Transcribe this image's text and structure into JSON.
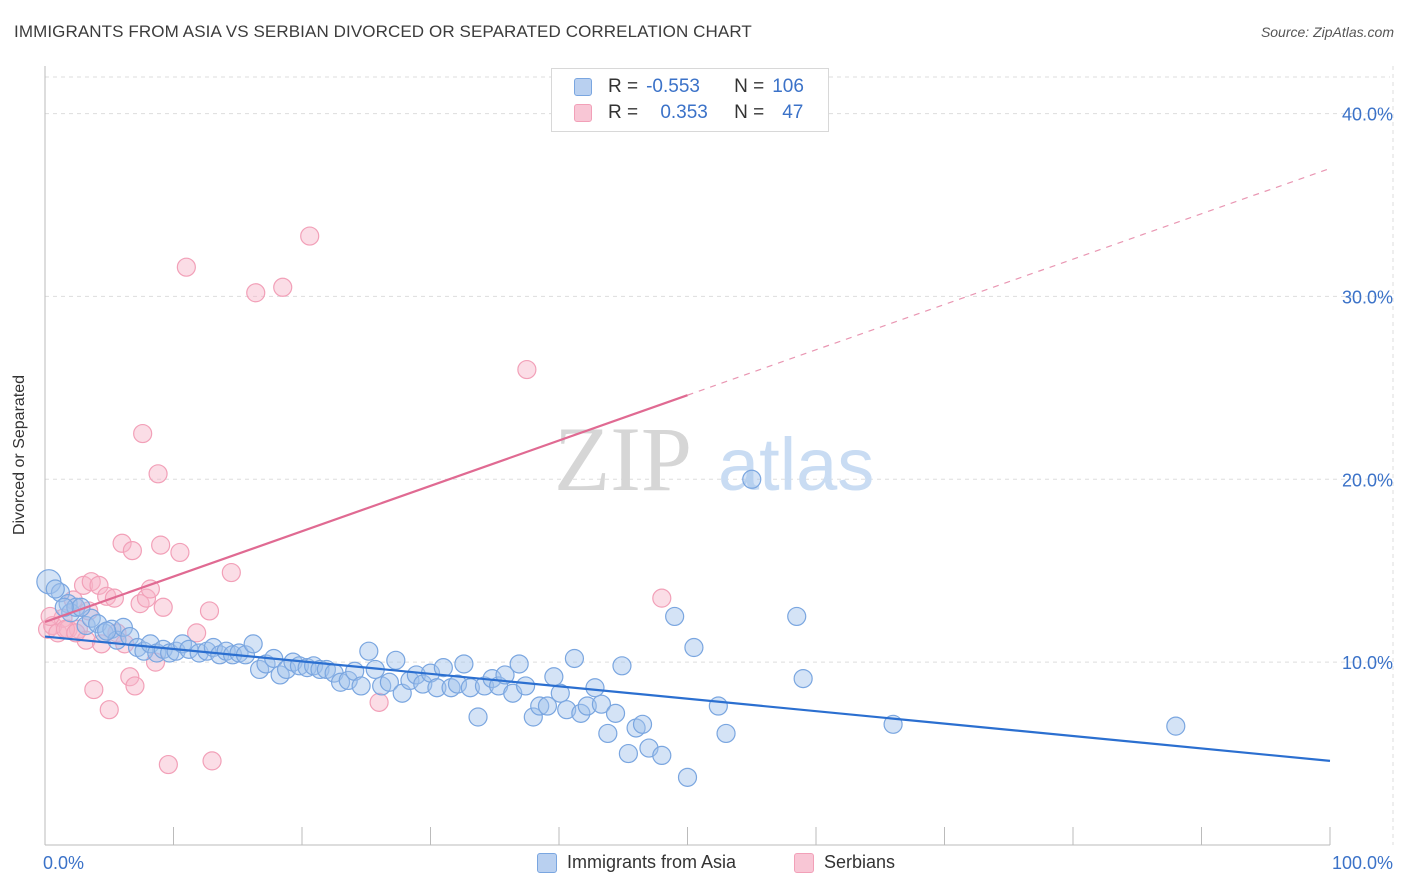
{
  "header": {
    "title": "IMMIGRANTS FROM ASIA VS SERBIAN DIVORCED OR SEPARATED CORRELATION CHART",
    "source": "Source: ZipAtlas.com"
  },
  "legend": {
    "rows": [
      {
        "r_label": "R =",
        "r_value": "-0.553",
        "n_label": "N =",
        "n_value": "106"
      },
      {
        "r_label": "R =",
        "r_value": "0.353",
        "n_label": "N =",
        "n_value": "47"
      }
    ]
  },
  "watermark": {
    "zip": "ZIP",
    "atlas": "atlas"
  },
  "colors": {
    "blue": "#7aa6e0",
    "blue_line": "#2b6fd0",
    "pink": "#f2a0b8",
    "pink_line": "#e06a92",
    "axis_label": "#3b72c8",
    "grid": "#dddddd"
  },
  "chart_data": {
    "type": "scatter",
    "title": "IMMIGRANTS FROM ASIA VS SERBIAN DIVORCED OR SEPARATED CORRELATION CHART",
    "xlabel": "",
    "ylabel": "Divorced or Separated",
    "xlim": [
      0,
      100
    ],
    "ylim": [
      0,
      42
    ],
    "x_tick_labels": [
      "0.0%",
      "100.0%"
    ],
    "y_ticks": [
      10,
      20,
      30,
      40
    ],
    "y_tick_labels": [
      "10.0%",
      "20.0%",
      "30.0%",
      "40.0%"
    ],
    "grid": true,
    "legend_position": "top-center",
    "series": [
      {
        "name": "Immigrants from Asia",
        "color": "#7aa6e0",
        "trend": {
          "x0": 0,
          "y0": 11.4,
          "x1": 100,
          "y1": 4.6,
          "dashed_from": null
        },
        "points": [
          [
            0.3,
            14.4
          ],
          [
            1.2,
            13.8
          ],
          [
            1.8,
            13.2
          ],
          [
            2.0,
            12.7
          ],
          [
            2.4,
            13.0
          ],
          [
            3.2,
            12.0
          ],
          [
            3.6,
            12.4
          ],
          [
            4.1,
            12.1
          ],
          [
            4.6,
            11.6
          ],
          [
            5.2,
            11.8
          ],
          [
            5.6,
            11.2
          ],
          [
            6.1,
            11.9
          ],
          [
            6.6,
            11.4
          ],
          [
            7.2,
            10.8
          ],
          [
            7.7,
            10.6
          ],
          [
            8.2,
            11.0
          ],
          [
            8.7,
            10.5
          ],
          [
            9.2,
            10.7
          ],
          [
            9.7,
            10.5
          ],
          [
            10.2,
            10.6
          ],
          [
            10.7,
            11.0
          ],
          [
            11.2,
            10.7
          ],
          [
            12.0,
            10.5
          ],
          [
            12.6,
            10.6
          ],
          [
            13.1,
            10.8
          ],
          [
            13.6,
            10.4
          ],
          [
            14.1,
            10.6
          ],
          [
            14.6,
            10.4
          ],
          [
            15.1,
            10.5
          ],
          [
            15.6,
            10.4
          ],
          [
            16.2,
            11.0
          ],
          [
            16.7,
            9.6
          ],
          [
            17.2,
            9.9
          ],
          [
            17.8,
            10.2
          ],
          [
            18.3,
            9.3
          ],
          [
            18.8,
            9.6
          ],
          [
            19.3,
            10.0
          ],
          [
            19.8,
            9.8
          ],
          [
            20.4,
            9.7
          ],
          [
            20.9,
            9.8
          ],
          [
            21.4,
            9.6
          ],
          [
            21.9,
            9.6
          ],
          [
            22.5,
            9.4
          ],
          [
            23.0,
            8.9
          ],
          [
            23.6,
            9.0
          ],
          [
            24.1,
            9.5
          ],
          [
            24.6,
            8.7
          ],
          [
            25.2,
            10.6
          ],
          [
            25.7,
            9.6
          ],
          [
            26.2,
            8.7
          ],
          [
            26.8,
            8.9
          ],
          [
            27.3,
            10.1
          ],
          [
            27.8,
            8.3
          ],
          [
            28.4,
            9.0
          ],
          [
            28.9,
            9.3
          ],
          [
            29.4,
            8.8
          ],
          [
            30.0,
            9.4
          ],
          [
            30.5,
            8.6
          ],
          [
            31.0,
            9.7
          ],
          [
            31.6,
            8.6
          ],
          [
            32.1,
            8.8
          ],
          [
            32.6,
            9.9
          ],
          [
            33.1,
            8.6
          ],
          [
            33.7,
            7.0
          ],
          [
            34.2,
            8.7
          ],
          [
            34.8,
            9.1
          ],
          [
            35.3,
            8.7
          ],
          [
            35.8,
            9.3
          ],
          [
            36.4,
            8.3
          ],
          [
            36.9,
            9.9
          ],
          [
            37.4,
            8.7
          ],
          [
            38.0,
            7.0
          ],
          [
            38.5,
            7.6
          ],
          [
            39.1,
            7.6
          ],
          [
            39.6,
            9.2
          ],
          [
            40.1,
            8.3
          ],
          [
            40.6,
            7.4
          ],
          [
            41.2,
            10.2
          ],
          [
            41.7,
            7.2
          ],
          [
            42.2,
            7.6
          ],
          [
            42.8,
            8.6
          ],
          [
            43.3,
            7.7
          ],
          [
            43.8,
            6.1
          ],
          [
            44.4,
            7.2
          ],
          [
            44.9,
            9.8
          ],
          [
            45.4,
            5.0
          ],
          [
            46.0,
            6.4
          ],
          [
            46.5,
            6.6
          ],
          [
            47.0,
            5.3
          ],
          [
            48.0,
            4.9
          ],
          [
            49.0,
            12.5
          ],
          [
            50.0,
            3.7
          ],
          [
            50.5,
            10.8
          ],
          [
            52.4,
            7.6
          ],
          [
            53.0,
            6.1
          ],
          [
            55.0,
            20.0
          ],
          [
            58.5,
            12.5
          ],
          [
            59.0,
            9.1
          ],
          [
            66.0,
            6.6
          ],
          [
            88.0,
            6.5
          ],
          [
            2.8,
            13.0
          ],
          [
            4.8,
            11.7
          ],
          [
            1.5,
            13.0
          ],
          [
            0.8,
            14.0
          ]
        ]
      },
      {
        "name": "Serbians",
        "color": "#f2a0b8",
        "trend": {
          "x0": 0,
          "y0": 12.2,
          "x1": 100,
          "y1": 37.0,
          "dashed_from": 50
        },
        "points": [
          [
            0.2,
            11.8
          ],
          [
            0.6,
            12.0
          ],
          [
            1.0,
            11.6
          ],
          [
            1.4,
            12.4
          ],
          [
            1.8,
            11.8
          ],
          [
            2.2,
            13.4
          ],
          [
            2.6,
            11.8
          ],
          [
            3.0,
            14.2
          ],
          [
            3.2,
            11.2
          ],
          [
            3.6,
            14.4
          ],
          [
            3.8,
            8.5
          ],
          [
            4.2,
            14.2
          ],
          [
            4.4,
            11.0
          ],
          [
            4.8,
            13.6
          ],
          [
            5.0,
            7.4
          ],
          [
            5.4,
            13.5
          ],
          [
            5.6,
            11.6
          ],
          [
            6.0,
            16.5
          ],
          [
            6.2,
            11.0
          ],
          [
            6.6,
            9.2
          ],
          [
            6.8,
            16.1
          ],
          [
            7.0,
            8.7
          ],
          [
            7.4,
            13.2
          ],
          [
            7.6,
            22.5
          ],
          [
            7.9,
            13.5
          ],
          [
            8.2,
            14.0
          ],
          [
            8.6,
            10.0
          ],
          [
            8.8,
            20.3
          ],
          [
            9.0,
            16.4
          ],
          [
            9.2,
            13.0
          ],
          [
            9.6,
            4.4
          ],
          [
            10.5,
            16.0
          ],
          [
            11.0,
            31.6
          ],
          [
            11.8,
            11.6
          ],
          [
            12.8,
            12.8
          ],
          [
            13.0,
            4.6
          ],
          [
            14.5,
            14.9
          ],
          [
            16.4,
            30.2
          ],
          [
            18.5,
            30.5
          ],
          [
            20.6,
            33.3
          ],
          [
            26.0,
            7.8
          ],
          [
            37.5,
            26.0
          ],
          [
            48.0,
            13.5
          ],
          [
            1.6,
            11.8
          ],
          [
            2.4,
            11.6
          ],
          [
            0.4,
            12.5
          ],
          [
            3.4,
            12.8
          ]
        ]
      }
    ]
  },
  "bottom_legend": {
    "items": [
      {
        "label": "Immigrants from Asia"
      },
      {
        "label": "Serbians"
      }
    ]
  }
}
